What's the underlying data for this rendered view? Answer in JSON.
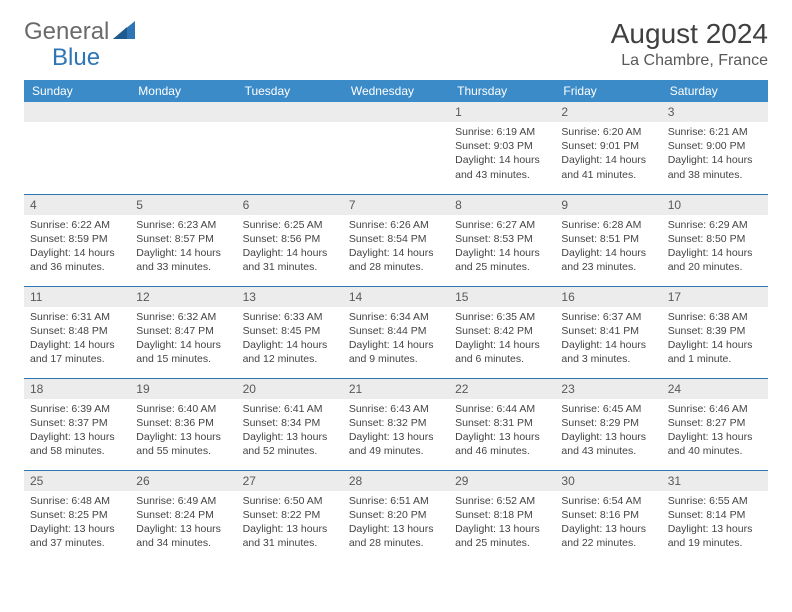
{
  "logo": {
    "general": "General",
    "blue": "Blue"
  },
  "title": "August 2024",
  "location": "La Chambre, France",
  "colors": {
    "header_bg": "#3b8bc8",
    "header_text": "#ffffff",
    "daynum_bg": "#ececec",
    "daynum_text": "#595959",
    "cell_border": "#2e75b6",
    "logo_gray": "#6a6a6a",
    "logo_blue": "#2e75b6",
    "body_text": "#444444"
  },
  "dayHeaders": [
    "Sunday",
    "Monday",
    "Tuesday",
    "Wednesday",
    "Thursday",
    "Friday",
    "Saturday"
  ],
  "weeks": [
    [
      null,
      null,
      null,
      null,
      {
        "n": "1",
        "sunrise": "6:19 AM",
        "sunset": "9:03 PM",
        "dh": "14",
        "dm": "43"
      },
      {
        "n": "2",
        "sunrise": "6:20 AM",
        "sunset": "9:01 PM",
        "dh": "14",
        "dm": "41"
      },
      {
        "n": "3",
        "sunrise": "6:21 AM",
        "sunset": "9:00 PM",
        "dh": "14",
        "dm": "38"
      }
    ],
    [
      {
        "n": "4",
        "sunrise": "6:22 AM",
        "sunset": "8:59 PM",
        "dh": "14",
        "dm": "36"
      },
      {
        "n": "5",
        "sunrise": "6:23 AM",
        "sunset": "8:57 PM",
        "dh": "14",
        "dm": "33"
      },
      {
        "n": "6",
        "sunrise": "6:25 AM",
        "sunset": "8:56 PM",
        "dh": "14",
        "dm": "31"
      },
      {
        "n": "7",
        "sunrise": "6:26 AM",
        "sunset": "8:54 PM",
        "dh": "14",
        "dm": "28"
      },
      {
        "n": "8",
        "sunrise": "6:27 AM",
        "sunset": "8:53 PM",
        "dh": "14",
        "dm": "25"
      },
      {
        "n": "9",
        "sunrise": "6:28 AM",
        "sunset": "8:51 PM",
        "dh": "14",
        "dm": "23"
      },
      {
        "n": "10",
        "sunrise": "6:29 AM",
        "sunset": "8:50 PM",
        "dh": "14",
        "dm": "20"
      }
    ],
    [
      {
        "n": "11",
        "sunrise": "6:31 AM",
        "sunset": "8:48 PM",
        "dh": "14",
        "dm": "17"
      },
      {
        "n": "12",
        "sunrise": "6:32 AM",
        "sunset": "8:47 PM",
        "dh": "14",
        "dm": "15"
      },
      {
        "n": "13",
        "sunrise": "6:33 AM",
        "sunset": "8:45 PM",
        "dh": "14",
        "dm": "12"
      },
      {
        "n": "14",
        "sunrise": "6:34 AM",
        "sunset": "8:44 PM",
        "dh": "14",
        "dm": "9"
      },
      {
        "n": "15",
        "sunrise": "6:35 AM",
        "sunset": "8:42 PM",
        "dh": "14",
        "dm": "6"
      },
      {
        "n": "16",
        "sunrise": "6:37 AM",
        "sunset": "8:41 PM",
        "dh": "14",
        "dm": "3"
      },
      {
        "n": "17",
        "sunrise": "6:38 AM",
        "sunset": "8:39 PM",
        "dh": "14",
        "dm": "1",
        "singular": true
      }
    ],
    [
      {
        "n": "18",
        "sunrise": "6:39 AM",
        "sunset": "8:37 PM",
        "dh": "13",
        "dm": "58"
      },
      {
        "n": "19",
        "sunrise": "6:40 AM",
        "sunset": "8:36 PM",
        "dh": "13",
        "dm": "55"
      },
      {
        "n": "20",
        "sunrise": "6:41 AM",
        "sunset": "8:34 PM",
        "dh": "13",
        "dm": "52"
      },
      {
        "n": "21",
        "sunrise": "6:43 AM",
        "sunset": "8:32 PM",
        "dh": "13",
        "dm": "49"
      },
      {
        "n": "22",
        "sunrise": "6:44 AM",
        "sunset": "8:31 PM",
        "dh": "13",
        "dm": "46"
      },
      {
        "n": "23",
        "sunrise": "6:45 AM",
        "sunset": "8:29 PM",
        "dh": "13",
        "dm": "43"
      },
      {
        "n": "24",
        "sunrise": "6:46 AM",
        "sunset": "8:27 PM",
        "dh": "13",
        "dm": "40"
      }
    ],
    [
      {
        "n": "25",
        "sunrise": "6:48 AM",
        "sunset": "8:25 PM",
        "dh": "13",
        "dm": "37"
      },
      {
        "n": "26",
        "sunrise": "6:49 AM",
        "sunset": "8:24 PM",
        "dh": "13",
        "dm": "34"
      },
      {
        "n": "27",
        "sunrise": "6:50 AM",
        "sunset": "8:22 PM",
        "dh": "13",
        "dm": "31"
      },
      {
        "n": "28",
        "sunrise": "6:51 AM",
        "sunset": "8:20 PM",
        "dh": "13",
        "dm": "28"
      },
      {
        "n": "29",
        "sunrise": "6:52 AM",
        "sunset": "8:18 PM",
        "dh": "13",
        "dm": "25"
      },
      {
        "n": "30",
        "sunrise": "6:54 AM",
        "sunset": "8:16 PM",
        "dh": "13",
        "dm": "22"
      },
      {
        "n": "31",
        "sunrise": "6:55 AM",
        "sunset": "8:14 PM",
        "dh": "13",
        "dm": "19"
      }
    ]
  ]
}
